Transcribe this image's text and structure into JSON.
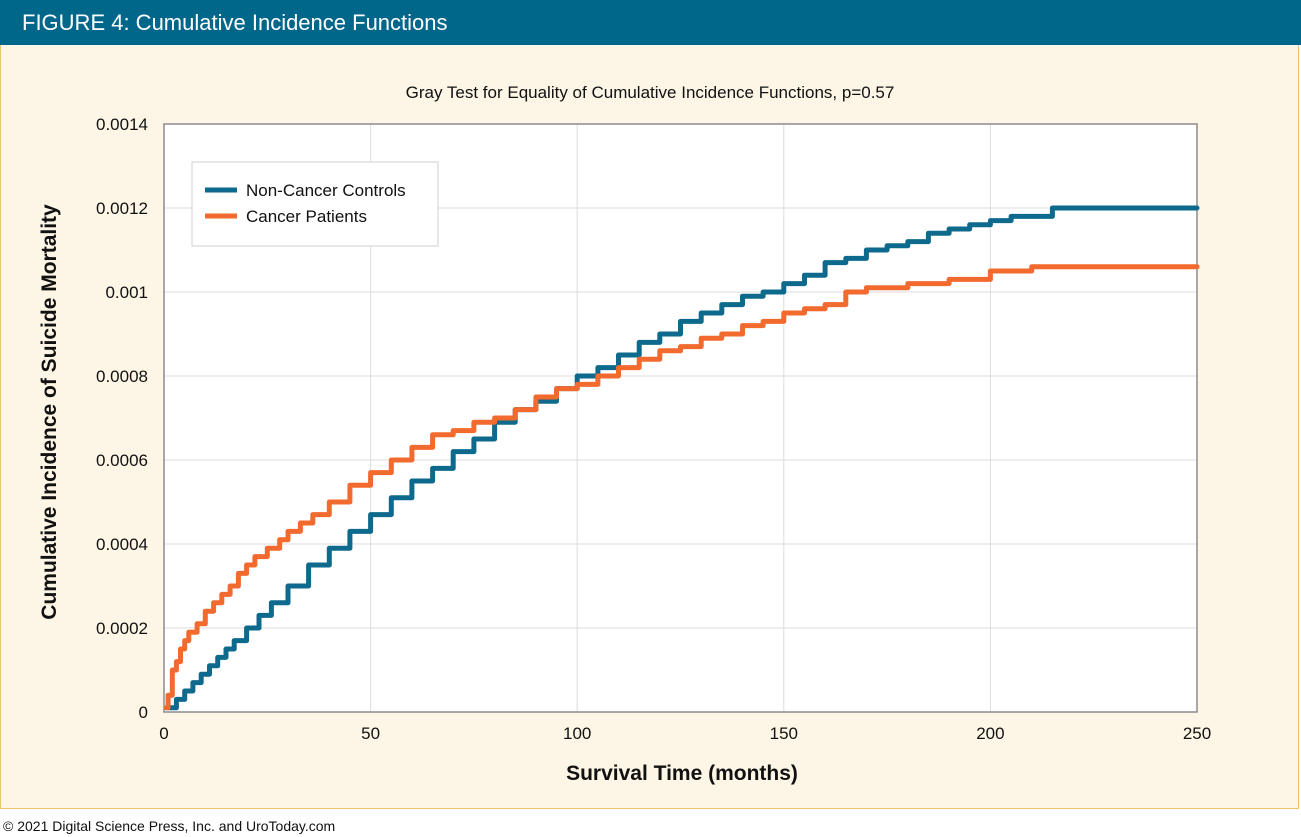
{
  "figure_label": "FIGURE 4: Cumulative Incidence Functions",
  "footer": "© 2021 Digital Science Press, Inc. and UroToday.com",
  "colors": {
    "header": "#00678b",
    "background": "#fdf6e6",
    "border": "#e9c46a",
    "non_cancer": "#0e6a8d",
    "cancer": "#f26a2e"
  },
  "chart_data": {
    "type": "line",
    "title": "Gray Test for Equality of Cumulative Incidence Functions, p=0.57",
    "xlabel": "Survival Time (months)",
    "ylabel": "Cumulative Incidence of Suicide Mortality",
    "xlim": [
      0,
      250
    ],
    "ylim": [
      0,
      0.0014
    ],
    "x_ticks": [
      0,
      50,
      100,
      150,
      200,
      250
    ],
    "x_tick_labels": [
      "0",
      "50",
      "100",
      "150",
      "200",
      "250"
    ],
    "y_ticks": [
      0,
      0.0002,
      0.0004,
      0.0006,
      0.0008,
      0.001,
      0.0012,
      0.0014
    ],
    "y_tick_labels": [
      "0",
      "0.0002",
      "0.0004",
      "0.0006",
      "0.0008",
      "0.001",
      "0.0012",
      "0.0014"
    ],
    "grid": true,
    "legend_position": "top-left",
    "series": [
      {
        "name": "Non-Cancer Controls",
        "color": "#0e6a8d",
        "x": [
          1,
          3,
          5,
          7,
          9,
          11,
          13,
          15,
          17,
          20,
          23,
          26,
          30,
          35,
          40,
          45,
          50,
          55,
          60,
          65,
          70,
          75,
          80,
          85,
          90,
          95,
          100,
          105,
          110,
          115,
          120,
          125,
          130,
          135,
          140,
          145,
          150,
          155,
          160,
          165,
          170,
          175,
          180,
          185,
          190,
          195,
          200,
          205,
          210,
          215,
          220,
          250
        ],
        "values": [
          1e-05,
          3e-05,
          5e-05,
          7e-05,
          9e-05,
          0.00011,
          0.00013,
          0.00015,
          0.00017,
          0.0002,
          0.00023,
          0.00026,
          0.0003,
          0.00035,
          0.00039,
          0.00043,
          0.00047,
          0.00051,
          0.00055,
          0.00058,
          0.00062,
          0.00065,
          0.00069,
          0.00072,
          0.00074,
          0.00077,
          0.0008,
          0.00082,
          0.00085,
          0.00088,
          0.0009,
          0.00093,
          0.00095,
          0.00097,
          0.00099,
          0.001,
          0.00102,
          0.00104,
          0.00107,
          0.00108,
          0.0011,
          0.00111,
          0.00112,
          0.00114,
          0.00115,
          0.00116,
          0.00117,
          0.00118,
          0.00118,
          0.0012,
          0.0012,
          0.0012
        ]
      },
      {
        "name": "Cancer Patients",
        "color": "#f26a2e",
        "x": [
          0.5,
          1,
          2,
          3,
          4,
          5,
          6,
          8,
          10,
          12,
          14,
          16,
          18,
          20,
          22,
          25,
          28,
          30,
          33,
          36,
          40,
          45,
          50,
          55,
          60,
          65,
          70,
          75,
          80,
          85,
          90,
          95,
          100,
          105,
          110,
          115,
          120,
          125,
          130,
          135,
          140,
          145,
          150,
          155,
          160,
          165,
          170,
          175,
          180,
          185,
          190,
          195,
          200,
          205,
          210,
          220,
          250
        ],
        "values": [
          1e-05,
          4e-05,
          0.0001,
          0.00012,
          0.00015,
          0.00017,
          0.00019,
          0.00021,
          0.00024,
          0.00026,
          0.00028,
          0.0003,
          0.00033,
          0.00035,
          0.00037,
          0.00039,
          0.00041,
          0.00043,
          0.00045,
          0.00047,
          0.0005,
          0.00054,
          0.00057,
          0.0006,
          0.00063,
          0.00066,
          0.00067,
          0.00069,
          0.0007,
          0.00072,
          0.00075,
          0.00077,
          0.00078,
          0.0008,
          0.00082,
          0.00084,
          0.00086,
          0.00087,
          0.00089,
          0.0009,
          0.00092,
          0.00093,
          0.00095,
          0.00096,
          0.00097,
          0.001,
          0.00101,
          0.00101,
          0.00102,
          0.00102,
          0.00103,
          0.00103,
          0.00105,
          0.00105,
          0.00106,
          0.00106,
          0.00106
        ]
      }
    ]
  }
}
